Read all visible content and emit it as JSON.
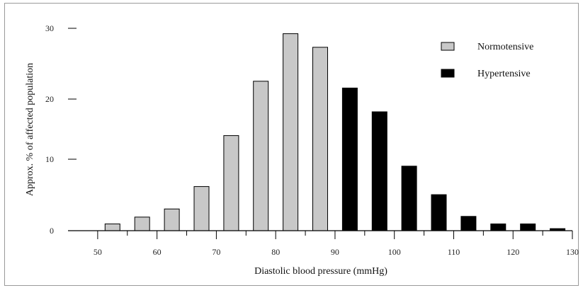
{
  "chart_data": {
    "type": "bar",
    "xlabel": "Diastolic blood pressure (mmHg)",
    "ylabel": "Approx. % of affected population",
    "x_ticks": [
      "50",
      "60",
      "70",
      "80",
      "90",
      "100",
      "110",
      "120",
      "130"
    ],
    "y_ticks": [
      "0",
      "10",
      "20",
      "30"
    ],
    "xlim": [
      45,
      130
    ],
    "series": [
      {
        "name": "Normotensive",
        "color": "#c8c8c8",
        "x": [
          52.5,
          57.5,
          62.5,
          67.5,
          72.5,
          77.5,
          82.5,
          87.5
        ],
        "values": [
          1,
          2,
          3.2,
          6.5,
          14,
          22,
          29,
          27
        ]
      },
      {
        "name": "Hypertensive",
        "color": "#000000",
        "x": [
          92.5,
          97.5,
          102.5,
          107.5,
          112.5,
          117.5,
          122.5,
          127.5
        ],
        "values": [
          21,
          17.5,
          9.5,
          5.3,
          2.1,
          1,
          1,
          0.3
        ]
      }
    ],
    "legend_position": "top-right",
    "grid": false
  }
}
